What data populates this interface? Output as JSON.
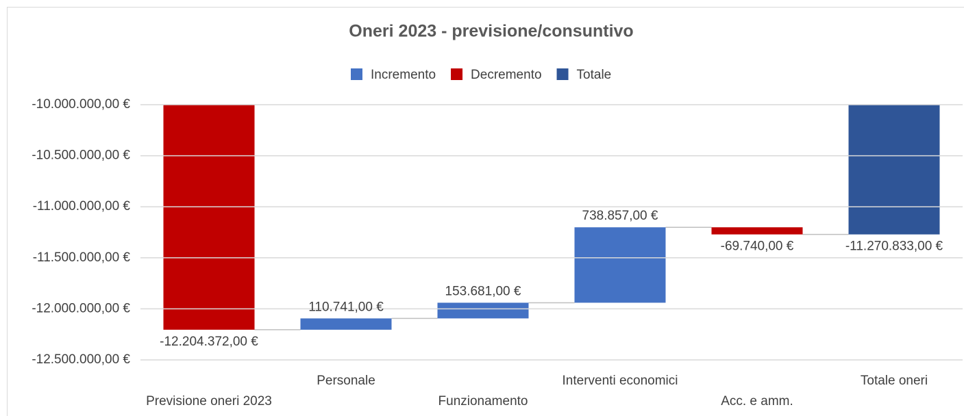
{
  "chart_data": {
    "type": "waterfall",
    "title": "Oneri 2023 - previsione/consuntivo",
    "categories": [
      "Previsione oneri 2023",
      "Personale",
      "Funzionamento",
      "Interventi economici",
      "Acc. e amm.",
      "Totale oneri"
    ],
    "values": [
      -12204372,
      110741,
      153681,
      738857,
      -69740,
      -11270833
    ],
    "value_labels": [
      "-12.204.372,00 €",
      "110.741,00 €",
      "153.681,00 €",
      "738.857,00 €",
      "-69.740,00 €",
      "-11.270.833,00 €"
    ],
    "legend": [
      {
        "name": "Incremento",
        "color": "#4472c4"
      },
      {
        "name": "Decremento",
        "color": "#c00000"
      },
      {
        "name": "Totale",
        "color": "#2f5597"
      }
    ],
    "ylim": [
      -12500000,
      -10000000
    ],
    "yticks": [
      {
        "value": -10000000,
        "label": "-10.000.000,00 €"
      },
      {
        "value": -10500000,
        "label": "-10.500.000,00 €"
      },
      {
        "value": -11000000,
        "label": "-11.000.000,00 €"
      },
      {
        "value": -11500000,
        "label": "-11.500.000,00 €"
      },
      {
        "value": -12000000,
        "label": "-12.000.000,00 €"
      },
      {
        "value": -12500000,
        "label": "-12.500.000,00 €"
      }
    ],
    "grid": true
  }
}
